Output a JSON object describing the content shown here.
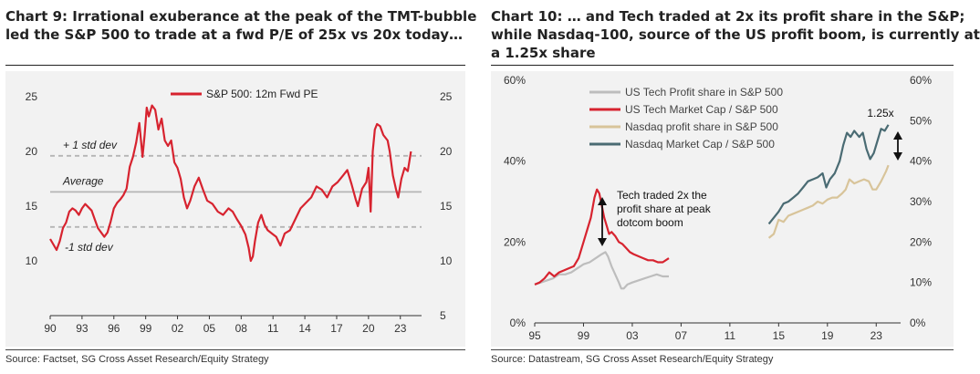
{
  "chart_data": [
    {
      "type": "line",
      "title": "Chart 9: Irrational exuberance at the peak of the TMT-bubble led the S&P 500 to trade at a fwd P/E of 25x vs 20x today…",
      "title_lines": [
        "Chart 9: Irrational exuberance at the peak of the TMT-bubble",
        "led the S&P 500 to trade at a fwd P/E of 25x vs 20x today…"
      ],
      "source": "Source: Factset, SG Cross Asset Research/Equity Strategy",
      "xlim": [
        1990,
        2025
      ],
      "ylim": [
        5,
        25
      ],
      "x_ticks": [
        {
          "v": 1990,
          "label": "90"
        },
        {
          "v": 1993,
          "label": "93"
        },
        {
          "v": 1996,
          "label": "96"
        },
        {
          "v": 1999,
          "label": "99"
        },
        {
          "v": 2002,
          "label": "02"
        },
        {
          "v": 2005,
          "label": "05"
        },
        {
          "v": 2008,
          "label": "08"
        },
        {
          "v": 2011,
          "label": "11"
        },
        {
          "v": 2014,
          "label": "14"
        },
        {
          "v": 2017,
          "label": "17"
        },
        {
          "v": 2020,
          "label": "20"
        },
        {
          "v": 2023,
          "label": "23"
        }
      ],
      "y_ticks": [
        {
          "v": 5,
          "label": "5"
        },
        {
          "v": 10,
          "label": "10"
        },
        {
          "v": 15,
          "label": "15"
        },
        {
          "v": 20,
          "label": "20"
        },
        {
          "v": 25,
          "label": "25"
        }
      ],
      "y_ticks_left": [
        {
          "v": 10,
          "label": "10"
        },
        {
          "v": 15,
          "label": "15"
        },
        {
          "v": 20,
          "label": "20"
        },
        {
          "v": 25,
          "label": "25"
        }
      ],
      "legend": "top-center",
      "series": [
        {
          "name": "S&P 500: 12m Fwd PE",
          "color": "#d7232f",
          "x": [
            1990.0,
            1990.3,
            1990.6,
            1990.9,
            1991.2,
            1991.5,
            1991.8,
            1992.1,
            1992.4,
            1992.7,
            1993.0,
            1993.3,
            1993.6,
            1993.9,
            1994.2,
            1994.5,
            1994.8,
            1995.1,
            1995.4,
            1995.7,
            1996.0,
            1996.3,
            1996.6,
            1996.9,
            1997.2,
            1997.5,
            1997.8,
            1998.1,
            1998.4,
            1998.7,
            1998.9,
            1999.1,
            1999.3,
            1999.6,
            1999.9,
            2000.2,
            2000.5,
            2000.8,
            2001.1,
            2001.4,
            2001.7,
            2002.0,
            2002.3,
            2002.6,
            2002.9,
            2003.2,
            2003.6,
            2004.0,
            2004.4,
            2004.8,
            2005.3,
            2005.8,
            2006.3,
            2006.8,
            2007.2,
            2007.6,
            2008.0,
            2008.4,
            2008.7,
            2008.9,
            2009.1,
            2009.3,
            2009.6,
            2009.9,
            2010.2,
            2010.5,
            2010.9,
            2011.3,
            2011.7,
            2012.1,
            2012.6,
            2013.1,
            2013.6,
            2014.1,
            2014.6,
            2015.1,
            2015.6,
            2016.1,
            2016.6,
            2017.1,
            2017.6,
            2018.0,
            2018.4,
            2018.8,
            2019.0,
            2019.4,
            2019.8,
            2020.0,
            2020.2,
            2020.4,
            2020.6,
            2020.8,
            2021.1,
            2021.4,
            2021.8,
            2022.0,
            2022.3,
            2022.6,
            2022.8,
            2023.1,
            2023.4,
            2023.7,
            2024.0
          ],
          "y": [
            12.0,
            11.5,
            11.0,
            11.8,
            13.0,
            13.5,
            14.5,
            14.8,
            14.6,
            14.2,
            14.8,
            15.2,
            14.9,
            14.6,
            13.8,
            13.0,
            12.6,
            12.2,
            12.6,
            13.6,
            14.8,
            15.3,
            15.6,
            16.0,
            16.6,
            18.6,
            19.5,
            20.8,
            22.6,
            19.5,
            21.5,
            24.0,
            23.2,
            24.2,
            23.8,
            22.0,
            23.0,
            21.0,
            20.5,
            21.0,
            19.0,
            18.5,
            17.5,
            15.8,
            14.8,
            15.5,
            16.8,
            17.6,
            16.5,
            15.5,
            15.2,
            14.5,
            14.2,
            14.8,
            14.5,
            13.8,
            13.2,
            12.4,
            11.2,
            10.0,
            10.4,
            11.8,
            13.5,
            14.2,
            13.3,
            12.8,
            12.5,
            12.2,
            11.4,
            12.5,
            12.8,
            13.8,
            14.8,
            15.3,
            15.8,
            16.8,
            16.5,
            15.8,
            16.8,
            17.2,
            17.8,
            18.3,
            17.0,
            15.6,
            15.0,
            16.6,
            17.2,
            18.5,
            14.5,
            20.0,
            22.0,
            22.5,
            22.3,
            21.5,
            21.0,
            20.0,
            17.8,
            16.5,
            15.8,
            17.5,
            18.5,
            18.2,
            20.0
          ]
        }
      ],
      "reference_lines": [
        {
          "label": "+ 1 std dev",
          "value": 19.6
        },
        {
          "label": "Average",
          "value": 16.3
        },
        {
          "label": "-1 std dev",
          "value": 13.1
        }
      ]
    },
    {
      "type": "line",
      "title": "Chart 10: … and Tech traded at 2x its profit share in the S&P; while Nasdaq-100, source of the US profit boom, is currently at a 1.25x share",
      "title_lines": [
        "Chart 10: … and Tech traded at 2x its profit share in the S&P;",
        "while Nasdaq-100, source of the US profit boom, is currently at",
        "a 1.25x share"
      ],
      "source": "Source: Datastream, SG Cross Asset Research/Equity Strategy",
      "xlim": [
        1995,
        2025
      ],
      "ylim": [
        0,
        60
      ],
      "x_ticks": [
        {
          "v": 1995,
          "label": "95"
        },
        {
          "v": 1999,
          "label": "99"
        },
        {
          "v": 2003,
          "label": "03"
        },
        {
          "v": 2007,
          "label": "07"
        },
        {
          "v": 2011,
          "label": "11"
        },
        {
          "v": 2015,
          "label": "15"
        },
        {
          "v": 2019,
          "label": "19"
        },
        {
          "v": 2023,
          "label": "23"
        }
      ],
      "y_ticks_left": [
        {
          "v": 0,
          "label": "0%"
        },
        {
          "v": 20,
          "label": "20%"
        },
        {
          "v": 40,
          "label": "40%"
        },
        {
          "v": 60,
          "label": "60%"
        }
      ],
      "y_ticks_right": [
        {
          "v": 0,
          "label": "0%"
        },
        {
          "v": 10,
          "label": "10%"
        },
        {
          "v": 20,
          "label": "20%"
        },
        {
          "v": 30,
          "label": "30%"
        },
        {
          "v": 40,
          "label": "40%"
        },
        {
          "v": 50,
          "label": "50%"
        },
        {
          "v": 60,
          "label": "60%"
        }
      ],
      "legend": "top-left",
      "series": [
        {
          "name": "US Tech Profit share in S&P 500",
          "color": "#bdbdbd",
          "x": [
            1995.0,
            1995.5,
            1996.0,
            1996.5,
            1997.0,
            1997.5,
            1998.0,
            1998.5,
            1999.0,
            1999.5,
            2000.0,
            2000.5,
            2000.8,
            2001.0,
            2001.3,
            2001.6,
            2001.9,
            2002.1,
            2002.3,
            2002.6,
            2003.0,
            2003.5,
            2004.0,
            2004.5,
            2005.0,
            2005.5,
            2006.0
          ],
          "y": [
            9.5,
            10.0,
            10.5,
            11.0,
            12.0,
            12.0,
            12.5,
            13.5,
            14.5,
            15.0,
            16.0,
            17.0,
            17.5,
            16.5,
            14.0,
            12.0,
            10.0,
            8.5,
            8.5,
            9.5,
            10.0,
            10.5,
            11.0,
            11.5,
            12.0,
            11.5,
            11.5
          ]
        },
        {
          "name": "US Tech Market Cap / S&P 500",
          "color": "#d7232f",
          "x": [
            1995.0,
            1995.4,
            1995.8,
            1996.2,
            1996.6,
            1997.0,
            1997.4,
            1997.8,
            1998.2,
            1998.6,
            1999.0,
            1999.3,
            1999.6,
            1999.9,
            2000.1,
            2000.3,
            2000.5,
            2000.7,
            2000.9,
            2001.1,
            2001.3,
            2001.6,
            2001.9,
            2002.2,
            2002.5,
            2002.8,
            2003.1,
            2003.5,
            2003.9,
            2004.3,
            2004.7,
            2005.1,
            2005.5,
            2006.0
          ],
          "y": [
            9.5,
            10.0,
            11.0,
            12.5,
            11.5,
            12.5,
            13.0,
            13.5,
            14.0,
            16.0,
            20.0,
            23.0,
            26.0,
            31.0,
            33.0,
            32.0,
            29.0,
            26.0,
            24.0,
            22.0,
            22.5,
            21.5,
            20.0,
            19.5,
            18.5,
            17.5,
            17.0,
            16.5,
            16.0,
            15.5,
            15.5,
            15.0,
            15.0,
            16.0
          ]
        },
        {
          "name": "Nasdaq profit share in S&P 500",
          "color": "#d8c49a",
          "x": [
            2014.2,
            2014.6,
            2015.0,
            2015.4,
            2015.8,
            2016.2,
            2016.6,
            2017.0,
            2017.4,
            2017.8,
            2018.2,
            2018.6,
            2019.0,
            2019.4,
            2019.8,
            2020.2,
            2020.5,
            2020.8,
            2021.2,
            2021.6,
            2022.0,
            2022.4,
            2022.7,
            2023.0,
            2023.4,
            2023.8,
            2024.0
          ],
          "y": [
            21.0,
            22.0,
            25.5,
            25.0,
            26.5,
            27.0,
            27.5,
            28.0,
            28.5,
            29.0,
            30.0,
            29.5,
            30.5,
            31.0,
            31.0,
            32.0,
            33.0,
            35.5,
            34.5,
            35.0,
            35.5,
            35.0,
            33.0,
            33.0,
            35.0,
            37.5,
            39.0
          ]
        },
        {
          "name": "Nasdaq Market Cap / S&P 500",
          "color": "#4a6b73",
          "x": [
            2014.2,
            2014.6,
            2015.0,
            2015.4,
            2015.8,
            2016.2,
            2016.6,
            2017.0,
            2017.4,
            2017.8,
            2018.2,
            2018.6,
            2018.9,
            2019.2,
            2019.6,
            2020.0,
            2020.3,
            2020.6,
            2020.9,
            2021.2,
            2021.6,
            2021.9,
            2022.2,
            2022.5,
            2022.8,
            2023.1,
            2023.4,
            2023.7,
            2024.0
          ],
          "y": [
            24.5,
            26.0,
            27.5,
            29.5,
            30.0,
            31.0,
            32.0,
            33.5,
            35.0,
            35.5,
            36.0,
            37.0,
            33.5,
            35.5,
            37.0,
            40.0,
            44.0,
            47.0,
            46.0,
            47.5,
            46.0,
            47.0,
            43.0,
            40.5,
            42.0,
            45.0,
            48.0,
            47.5,
            49.0
          ]
        }
      ],
      "annotations": [
        {
          "text_lines": [
            "Tech traded 2x the",
            "profit share at peak",
            "dotcom boom"
          ]
        },
        {
          "text": "1.25x"
        }
      ]
    }
  ]
}
